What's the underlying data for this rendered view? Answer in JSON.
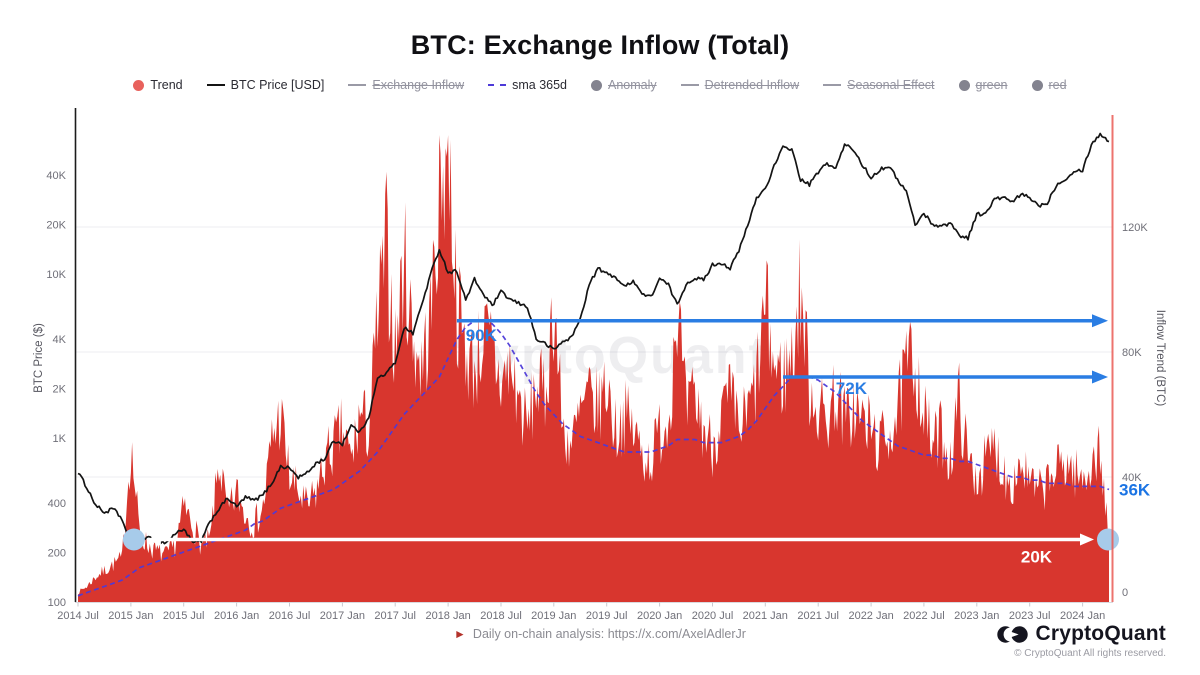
{
  "title": "BTC: Exchange Inflow (Total)",
  "legend": {
    "items": [
      {
        "label": "Trend",
        "marker": "dot",
        "color": "#e8615c",
        "disabled": false
      },
      {
        "label": "BTC Price [USD]",
        "marker": "line",
        "color": "#141414",
        "disabled": false
      },
      {
        "label": "Exchange Inflow",
        "marker": "line",
        "color": "#9a9aa6",
        "disabled": true
      },
      {
        "label": "sma 365d",
        "marker": "dashed",
        "color": "#4d3ad8",
        "disabled": false
      },
      {
        "label": "Anomaly",
        "marker": "dot",
        "color": "#83838f",
        "disabled": true
      },
      {
        "label": "Detrended Inflow",
        "marker": "line",
        "color": "#9a9aa6",
        "disabled": true
      },
      {
        "label": "Seasonal Effect",
        "marker": "line",
        "color": "#9a9aa6",
        "disabled": true
      },
      {
        "label": "green",
        "marker": "dot",
        "color": "#83838f",
        "disabled": true
      },
      {
        "label": "red",
        "marker": "dot",
        "color": "#83838f",
        "disabled": true
      }
    ]
  },
  "chart_data": {
    "type": "area",
    "title": "BTC: Exchange Inflow (Total)",
    "watermark": "CryptoQuant",
    "x_start_month": "2014-07",
    "x_tick_labels": [
      "2014 Jul",
      "2015 Jan",
      "2015 Jul",
      "2016 Jan",
      "2016 Jul",
      "2017 Jan",
      "2017 Jul",
      "2018 Jan",
      "2018 Jul",
      "2019 Jan",
      "2019 Jul",
      "2020 Jan",
      "2020 Jul",
      "2021 Jan",
      "2021 Jul",
      "2022 Jan",
      "2022 Jul",
      "2023 Jan",
      "2023 Jul",
      "2024 Jan"
    ],
    "left_axis": {
      "label": "BTC Price ($)",
      "scale": "log",
      "ticks": [
        {
          "v": 100,
          "label": "100"
        },
        {
          "v": 200,
          "label": "200"
        },
        {
          "v": 400,
          "label": "400"
        },
        {
          "v": 1000,
          "label": "1K"
        },
        {
          "v": 2000,
          "label": "2K"
        },
        {
          "v": 4000,
          "label": "4K"
        },
        {
          "v": 10000,
          "label": "10K"
        },
        {
          "v": 20000,
          "label": "20K"
        },
        {
          "v": 40000,
          "label": "40K"
        }
      ]
    },
    "right_axis": {
      "label": "Inflow Trend (BTC)",
      "scale": "linear",
      "unit": "K BTC",
      "ticks": [
        {
          "v": 0,
          "label": "0"
        },
        {
          "v": 40,
          "label": "40K"
        },
        {
          "v": 80,
          "label": "80K"
        },
        {
          "v": 120,
          "label": "120K"
        }
      ]
    },
    "series": [
      {
        "id": "inflow_trend",
        "name": "Trend",
        "color": "#d8362e",
        "axis": "right",
        "unit": "K BTC",
        "values": [
          3,
          5,
          8,
          10,
          12,
          14,
          50,
          22,
          18,
          16,
          15,
          18,
          30,
          25,
          18,
          20,
          45,
          28,
          35,
          28,
          25,
          30,
          52,
          60,
          40,
          35,
          30,
          35,
          45,
          50,
          55,
          45,
          60,
          55,
          90,
          115,
          80,
          110,
          85,
          75,
          90,
          130,
          150,
          95,
          80,
          75,
          85,
          80,
          70,
          75,
          65,
          55,
          70,
          65,
          97,
          55,
          50,
          60,
          65,
          62,
          70,
          55,
          60,
          55,
          48,
          45,
          55,
          58,
          97,
          60,
          65,
          55,
          50,
          60,
          65,
          55,
          60,
          70,
          95,
          75,
          72,
          78,
          100,
          70,
          62,
          58,
          68,
          58,
          62,
          58,
          55,
          50,
          55,
          60,
          75,
          78,
          60,
          50,
          55,
          45,
          65,
          45,
          40,
          45,
          50,
          42,
          38,
          45,
          38,
          35,
          38,
          42,
          45,
          42,
          38,
          45,
          48,
          20
        ]
      },
      {
        "id": "btc_price",
        "name": "BTC Price [USD]",
        "color": "#141414",
        "axis": "left",
        "unit": "USD",
        "values": [
          620,
          500,
          390,
          350,
          370,
          320,
          220,
          250,
          245,
          235,
          230,
          260,
          280,
          230,
          235,
          310,
          370,
          430,
          380,
          435,
          415,
          450,
          530,
          670,
          655,
          575,
          610,
          700,
          745,
          960,
          920,
          1190,
          1080,
          1350,
          2300,
          2480,
          2870,
          4700,
          4340,
          6450,
          9900,
          14100,
          10200,
          10400,
          6900,
          9250,
          7500,
          6400,
          7750,
          7000,
          6600,
          6300,
          4000,
          3750,
          3450,
          3850,
          4100,
          5300,
          8550,
          10800,
          10000,
          9600,
          8300,
          9150,
          7550,
          7200,
          9350,
          8550,
          6450,
          8650,
          9450,
          9140,
          11350,
          11650,
          10800,
          13800,
          19700,
          29000,
          33100,
          45200,
          58800,
          57750,
          37300,
          35000,
          41600,
          47150,
          43800,
          61300,
          57000,
          46200,
          38500,
          43200,
          45500,
          37650,
          31800,
          19900,
          23300,
          20050,
          19400,
          20500,
          17150,
          16550,
          23100,
          23150,
          28500,
          29250,
          27200,
          30450,
          29200,
          26000,
          27000,
          34650,
          37700,
          42250,
          43000,
          61200,
          71300,
          64000
        ]
      },
      {
        "id": "sma_365d",
        "name": "sma 365d",
        "color": "#4d3ad8",
        "axis": "right",
        "unit": "K BTC",
        "values": [
          2,
          3,
          4,
          5,
          6,
          7,
          9,
          11,
          12,
          13,
          14,
          15,
          16,
          17,
          18,
          19,
          20,
          21,
          22,
          23,
          25,
          26,
          28,
          30,
          31,
          32,
          33,
          34,
          35,
          36,
          38,
          40,
          42,
          45,
          48,
          52,
          56,
          60,
          63,
          66,
          69,
          72,
          78,
          84,
          88,
          90,
          90,
          89,
          86,
          82,
          77,
          72,
          67,
          63,
          60,
          57,
          55,
          53,
          52,
          51,
          50,
          49,
          48,
          48,
          48,
          48,
          49,
          50,
          52,
          52,
          52,
          51,
          51,
          51,
          52,
          53,
          55,
          58,
          62,
          66,
          69,
          72,
          72,
          72,
          71,
          69,
          67,
          64,
          61,
          58,
          56,
          54,
          52,
          50,
          49,
          48,
          47,
          47,
          46,
          46,
          45,
          45,
          44,
          43,
          42,
          41,
          40,
          40,
          39,
          39,
          38,
          38,
          38,
          37,
          37,
          37,
          37,
          36
        ]
      }
    ],
    "annotations": [
      {
        "kind": "harrow",
        "label": "90K",
        "value_k": 90,
        "from_month": "2018-02",
        "label_month": "2018-03",
        "label_dy": 20,
        "color": "#2a7de3",
        "heads": "right",
        "endpoint_dots": false
      },
      {
        "kind": "harrow",
        "label": "72K",
        "value_k": 72,
        "from_month": "2021-03",
        "label_month": "2021-09",
        "label_dy": 17,
        "color": "#2a7de3",
        "heads": "right",
        "endpoint_dots": false
      },
      {
        "kind": "harrow",
        "label": "20K",
        "value_k": 20,
        "from_month": "2015-01",
        "label_month": "2023-06",
        "label_dy": 23,
        "color": "#ffffff",
        "heads": "both",
        "endpoint_dots": true,
        "dot_color": "#a7cbea"
      },
      {
        "kind": "text",
        "label": "36K",
        "value_k": 36,
        "x": 1119,
        "color": "#1b74e4"
      }
    ],
    "current_marker_color": "#ea5b55",
    "grid": "horizontal-right-ticks",
    "legend_position": "top"
  },
  "footer": {
    "icon": "►",
    "text": "Daily on-chain analysis: https://x.com/AxelAdlerJr"
  },
  "brand": {
    "name": "CryptoQuant",
    "copyright": "© CryptoQuant All rights reserved."
  }
}
